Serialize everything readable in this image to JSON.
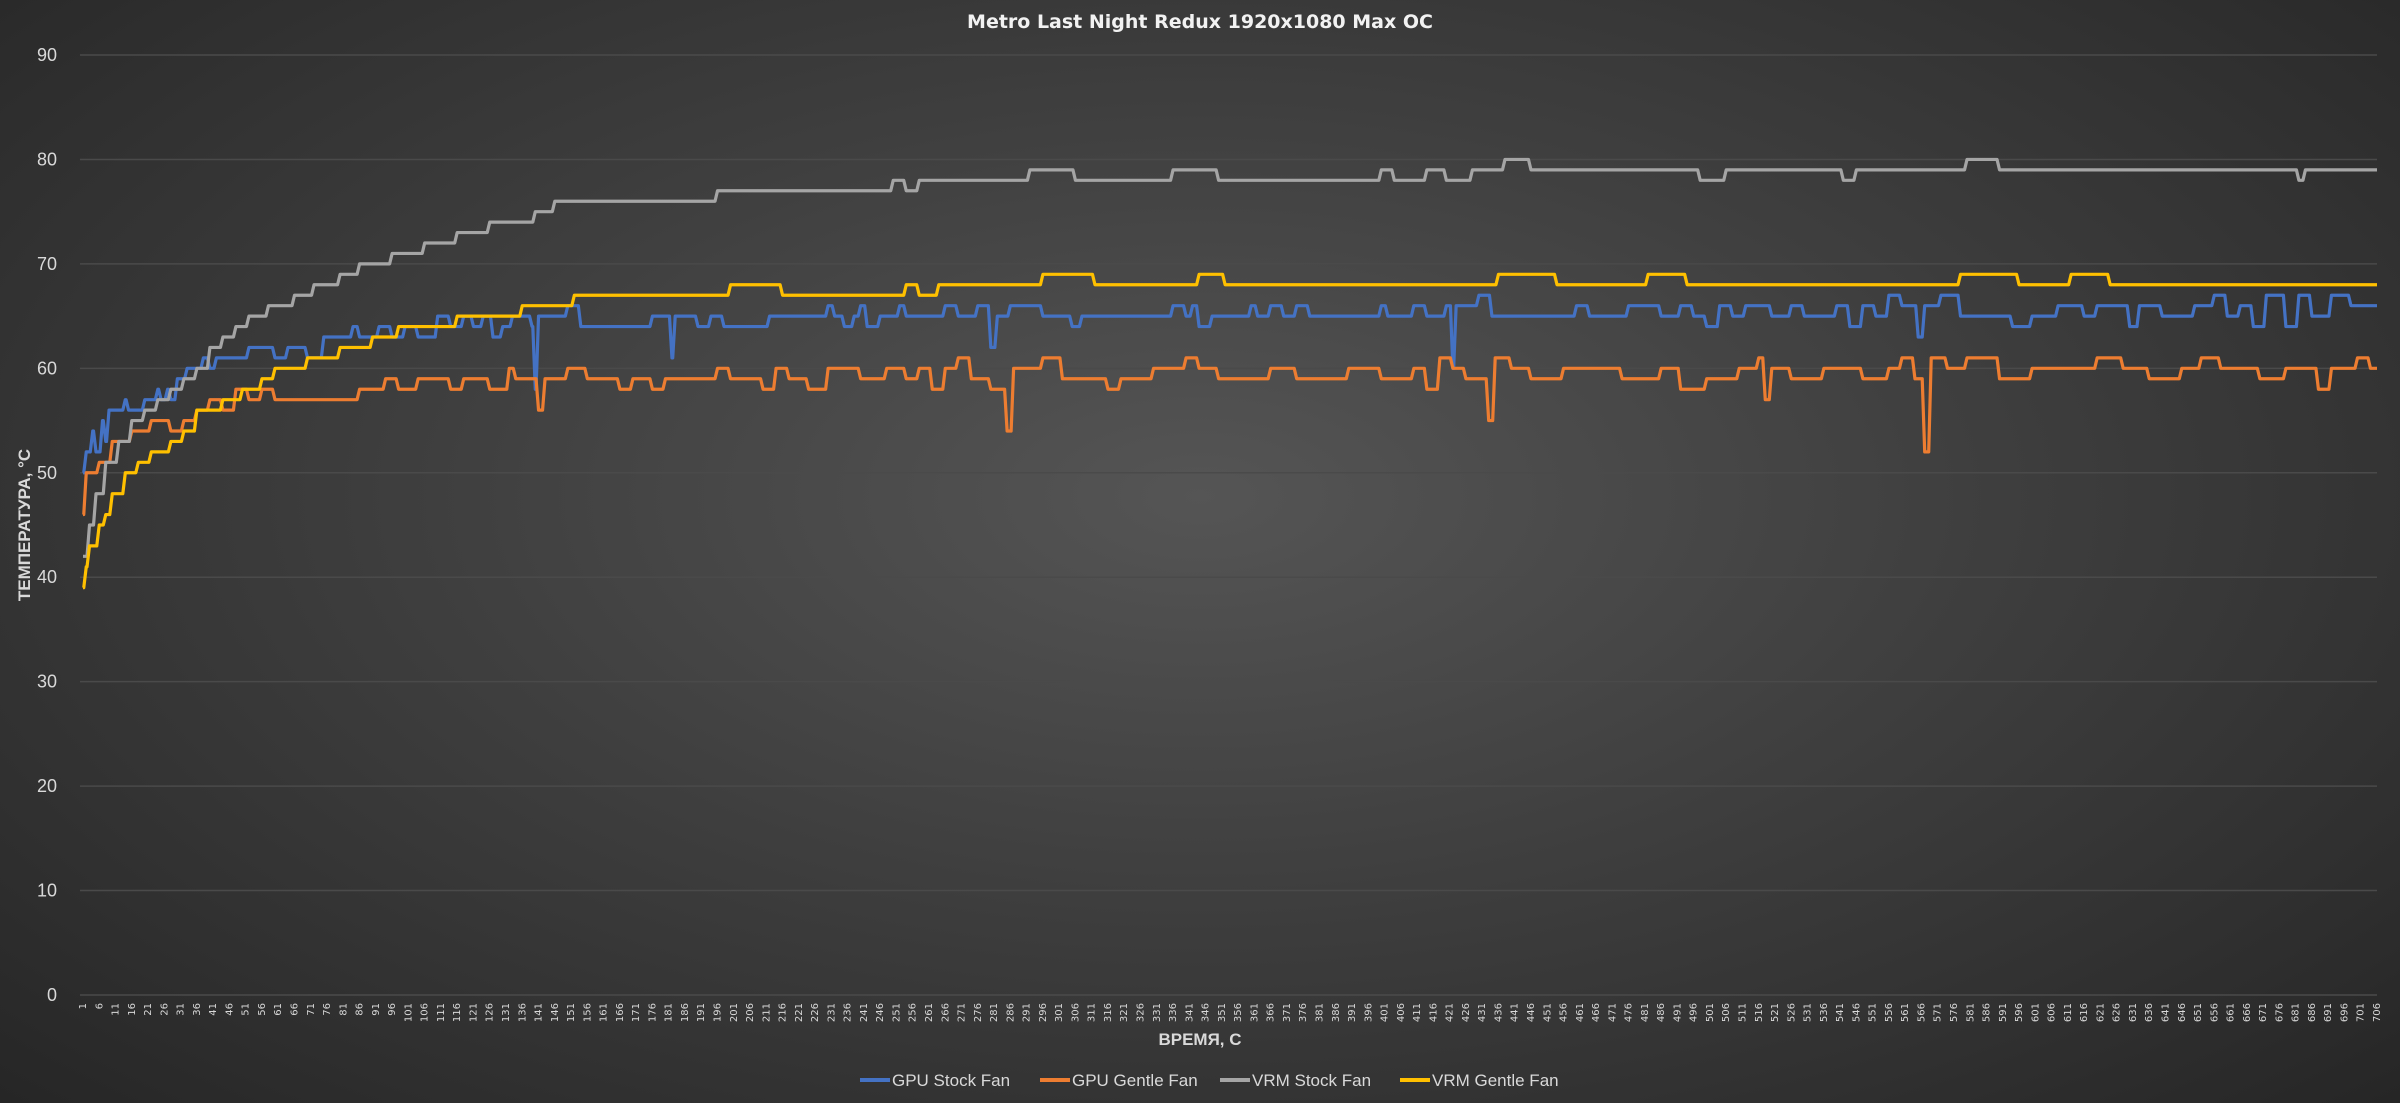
{
  "chart_data": {
    "type": "line",
    "title": "Metro Last Night Redux 1920x1080 Max OC",
    "xlabel": "ВРЕМЯ, С",
    "ylabel": "ТЕМПЕРАТУРА, °C",
    "xlim": [
      1,
      706
    ],
    "x_tick_start": 1,
    "x_tick_step": 5,
    "ylim": [
      0,
      90
    ],
    "yticks": [
      0,
      10,
      20,
      30,
      40,
      50,
      60,
      70,
      80,
      90
    ],
    "grid": true,
    "legend_position": "bottom",
    "series_format": "step breakpoints [x, y]; value holds until next breakpoint",
    "series": [
      {
        "name": "GPU Stock Fan",
        "color": "#4472c4",
        "points": [
          [
            1,
            50
          ],
          [
            2,
            52
          ],
          [
            4,
            54
          ],
          [
            5,
            52
          ],
          [
            7,
            55
          ],
          [
            8,
            53
          ],
          [
            9,
            56
          ],
          [
            12,
            56
          ],
          [
            14,
            57
          ],
          [
            15,
            56
          ],
          [
            20,
            57
          ],
          [
            24,
            58
          ],
          [
            25,
            57
          ],
          [
            27,
            58
          ],
          [
            28,
            57
          ],
          [
            30,
            59
          ],
          [
            33,
            60
          ],
          [
            38,
            61
          ],
          [
            40,
            60
          ],
          [
            42,
            61
          ],
          [
            52,
            62
          ],
          [
            60,
            61
          ],
          [
            64,
            62
          ],
          [
            70,
            61
          ],
          [
            75,
            63
          ],
          [
            84,
            64
          ],
          [
            86,
            63
          ],
          [
            92,
            64
          ],
          [
            96,
            63
          ],
          [
            100,
            64
          ],
          [
            104,
            63
          ],
          [
            110,
            65
          ],
          [
            114,
            64
          ],
          [
            118,
            65
          ],
          [
            121,
            64
          ],
          [
            124,
            65
          ],
          [
            127,
            63
          ],
          [
            130,
            64
          ],
          [
            133,
            65
          ],
          [
            139,
            64
          ],
          [
            140,
            58
          ],
          [
            141,
            65
          ],
          [
            150,
            66
          ],
          [
            154,
            64
          ],
          [
            176,
            65
          ],
          [
            182,
            61
          ],
          [
            183,
            65
          ],
          [
            190,
            64
          ],
          [
            194,
            65
          ],
          [
            198,
            64
          ],
          [
            212,
            65
          ],
          [
            230,
            66
          ],
          [
            232,
            65
          ],
          [
            235,
            64
          ],
          [
            238,
            65
          ],
          [
            240,
            66
          ],
          [
            242,
            64
          ],
          [
            246,
            65
          ],
          [
            252,
            66
          ],
          [
            254,
            65
          ],
          [
            266,
            66
          ],
          [
            270,
            65
          ],
          [
            276,
            66
          ],
          [
            280,
            62
          ],
          [
            282,
            65
          ],
          [
            286,
            66
          ],
          [
            296,
            65
          ],
          [
            305,
            64
          ],
          [
            308,
            65
          ],
          [
            336,
            66
          ],
          [
            340,
            65
          ],
          [
            342,
            66
          ],
          [
            344,
            64
          ],
          [
            348,
            65
          ],
          [
            360,
            66
          ],
          [
            362,
            65
          ],
          [
            366,
            66
          ],
          [
            370,
            65
          ],
          [
            374,
            66
          ],
          [
            378,
            65
          ],
          [
            400,
            66
          ],
          [
            402,
            65
          ],
          [
            410,
            66
          ],
          [
            414,
            65
          ],
          [
            420,
            66
          ],
          [
            422,
            60
          ],
          [
            423,
            66
          ],
          [
            430,
            67
          ],
          [
            434,
            65
          ],
          [
            460,
            66
          ],
          [
            464,
            65
          ],
          [
            476,
            66
          ],
          [
            486,
            65
          ],
          [
            492,
            66
          ],
          [
            496,
            65
          ],
          [
            500,
            64
          ],
          [
            504,
            66
          ],
          [
            508,
            65
          ],
          [
            512,
            66
          ],
          [
            520,
            65
          ],
          [
            526,
            66
          ],
          [
            530,
            65
          ],
          [
            540,
            66
          ],
          [
            544,
            64
          ],
          [
            548,
            66
          ],
          [
            552,
            65
          ],
          [
            556,
            67
          ],
          [
            560,
            66
          ],
          [
            565,
            63
          ],
          [
            567,
            66
          ],
          [
            572,
            67
          ],
          [
            578,
            65
          ],
          [
            594,
            64
          ],
          [
            600,
            65
          ],
          [
            608,
            66
          ],
          [
            616,
            65
          ],
          [
            620,
            66
          ],
          [
            630,
            64
          ],
          [
            633,
            66
          ],
          [
            640,
            65
          ],
          [
            650,
            66
          ],
          [
            656,
            67
          ],
          [
            660,
            65
          ],
          [
            664,
            66
          ],
          [
            668,
            64
          ],
          [
            672,
            67
          ],
          [
            678,
            64
          ],
          [
            682,
            67
          ],
          [
            686,
            65
          ],
          [
            692,
            67
          ],
          [
            698,
            66
          ],
          [
            706,
            66
          ]
        ]
      },
      {
        "name": "GPU Gentle Fan",
        "color": "#ed7d31",
        "points": [
          [
            1,
            46
          ],
          [
            2,
            50
          ],
          [
            6,
            51
          ],
          [
            10,
            53
          ],
          [
            16,
            54
          ],
          [
            22,
            55
          ],
          [
            28,
            54
          ],
          [
            32,
            55
          ],
          [
            36,
            56
          ],
          [
            40,
            57
          ],
          [
            44,
            56
          ],
          [
            48,
            58
          ],
          [
            52,
            57
          ],
          [
            56,
            58
          ],
          [
            60,
            57
          ],
          [
            86,
            58
          ],
          [
            94,
            59
          ],
          [
            98,
            58
          ],
          [
            104,
            59
          ],
          [
            114,
            58
          ],
          [
            118,
            59
          ],
          [
            126,
            58
          ],
          [
            132,
            60
          ],
          [
            134,
            59
          ],
          [
            141,
            56
          ],
          [
            143,
            59
          ],
          [
            150,
            60
          ],
          [
            156,
            59
          ],
          [
            166,
            58
          ],
          [
            170,
            59
          ],
          [
            176,
            58
          ],
          [
            180,
            59
          ],
          [
            196,
            60
          ],
          [
            200,
            59
          ],
          [
            210,
            58
          ],
          [
            214,
            60
          ],
          [
            218,
            59
          ],
          [
            224,
            58
          ],
          [
            230,
            60
          ],
          [
            240,
            59
          ],
          [
            248,
            60
          ],
          [
            254,
            59
          ],
          [
            258,
            60
          ],
          [
            262,
            58
          ],
          [
            266,
            60
          ],
          [
            270,
            61
          ],
          [
            274,
            59
          ],
          [
            280,
            58
          ],
          [
            285,
            54
          ],
          [
            287,
            60
          ],
          [
            296,
            61
          ],
          [
            302,
            59
          ],
          [
            316,
            58
          ],
          [
            320,
            59
          ],
          [
            330,
            60
          ],
          [
            340,
            61
          ],
          [
            344,
            60
          ],
          [
            350,
            59
          ],
          [
            366,
            60
          ],
          [
            374,
            59
          ],
          [
            390,
            60
          ],
          [
            400,
            59
          ],
          [
            410,
            60
          ],
          [
            414,
            58
          ],
          [
            418,
            61
          ],
          [
            422,
            60
          ],
          [
            426,
            59
          ],
          [
            433,
            55
          ],
          [
            435,
            61
          ],
          [
            440,
            60
          ],
          [
            446,
            59
          ],
          [
            456,
            60
          ],
          [
            474,
            59
          ],
          [
            486,
            60
          ],
          [
            492,
            58
          ],
          [
            500,
            59
          ],
          [
            510,
            60
          ],
          [
            516,
            61
          ],
          [
            518,
            57
          ],
          [
            520,
            60
          ],
          [
            526,
            59
          ],
          [
            536,
            60
          ],
          [
            548,
            59
          ],
          [
            556,
            60
          ],
          [
            560,
            61
          ],
          [
            564,
            59
          ],
          [
            567,
            52
          ],
          [
            569,
            61
          ],
          [
            574,
            60
          ],
          [
            580,
            61
          ],
          [
            590,
            59
          ],
          [
            600,
            60
          ],
          [
            620,
            61
          ],
          [
            628,
            60
          ],
          [
            636,
            59
          ],
          [
            646,
            60
          ],
          [
            652,
            61
          ],
          [
            658,
            60
          ],
          [
            670,
            59
          ],
          [
            678,
            60
          ],
          [
            688,
            58
          ],
          [
            692,
            60
          ],
          [
            700,
            61
          ],
          [
            704,
            60
          ],
          [
            706,
            60
          ]
        ]
      },
      {
        "name": "VRM Stock Fan",
        "color": "#a5a5a5",
        "points": [
          [
            1,
            42
          ],
          [
            3,
            45
          ],
          [
            5,
            48
          ],
          [
            8,
            51
          ],
          [
            12,
            53
          ],
          [
            16,
            55
          ],
          [
            20,
            56
          ],
          [
            24,
            57
          ],
          [
            28,
            58
          ],
          [
            32,
            59
          ],
          [
            36,
            60
          ],
          [
            40,
            62
          ],
          [
            44,
            63
          ],
          [
            48,
            64
          ],
          [
            52,
            65
          ],
          [
            58,
            66
          ],
          [
            66,
            67
          ],
          [
            72,
            68
          ],
          [
            80,
            69
          ],
          [
            86,
            70
          ],
          [
            96,
            71
          ],
          [
            106,
            72
          ],
          [
            116,
            73
          ],
          [
            126,
            74
          ],
          [
            140,
            75
          ],
          [
            146,
            76
          ],
          [
            196,
            77
          ],
          [
            250,
            78
          ],
          [
            254,
            77
          ],
          [
            258,
            78
          ],
          [
            292,
            79
          ],
          [
            306,
            78
          ],
          [
            336,
            79
          ],
          [
            350,
            78
          ],
          [
            400,
            79
          ],
          [
            404,
            78
          ],
          [
            414,
            79
          ],
          [
            420,
            78
          ],
          [
            428,
            79
          ],
          [
            438,
            80
          ],
          [
            446,
            79
          ],
          [
            498,
            78
          ],
          [
            506,
            79
          ],
          [
            542,
            78
          ],
          [
            546,
            79
          ],
          [
            580,
            80
          ],
          [
            590,
            79
          ],
          [
            682,
            78
          ],
          [
            684,
            79
          ],
          [
            706,
            79
          ]
        ]
      },
      {
        "name": "VRM Gentle Fan",
        "color": "#ffc000",
        "points": [
          [
            1,
            39
          ],
          [
            2,
            41
          ],
          [
            3,
            43
          ],
          [
            6,
            45
          ],
          [
            8,
            46
          ],
          [
            10,
            48
          ],
          [
            14,
            50
          ],
          [
            18,
            51
          ],
          [
            22,
            52
          ],
          [
            28,
            53
          ],
          [
            32,
            54
          ],
          [
            36,
            56
          ],
          [
            44,
            57
          ],
          [
            50,
            58
          ],
          [
            56,
            59
          ],
          [
            60,
            60
          ],
          [
            70,
            61
          ],
          [
            80,
            62
          ],
          [
            90,
            63
          ],
          [
            98,
            64
          ],
          [
            116,
            65
          ],
          [
            136,
            66
          ],
          [
            152,
            67
          ],
          [
            200,
            68
          ],
          [
            216,
            67
          ],
          [
            254,
            68
          ],
          [
            258,
            67
          ],
          [
            264,
            68
          ],
          [
            296,
            69
          ],
          [
            312,
            68
          ],
          [
            344,
            69
          ],
          [
            352,
            68
          ],
          [
            436,
            69
          ],
          [
            454,
            68
          ],
          [
            482,
            69
          ],
          [
            494,
            68
          ],
          [
            578,
            69
          ],
          [
            596,
            68
          ],
          [
            612,
            69
          ],
          [
            624,
            68
          ],
          [
            706,
            68
          ]
        ]
      }
    ]
  }
}
